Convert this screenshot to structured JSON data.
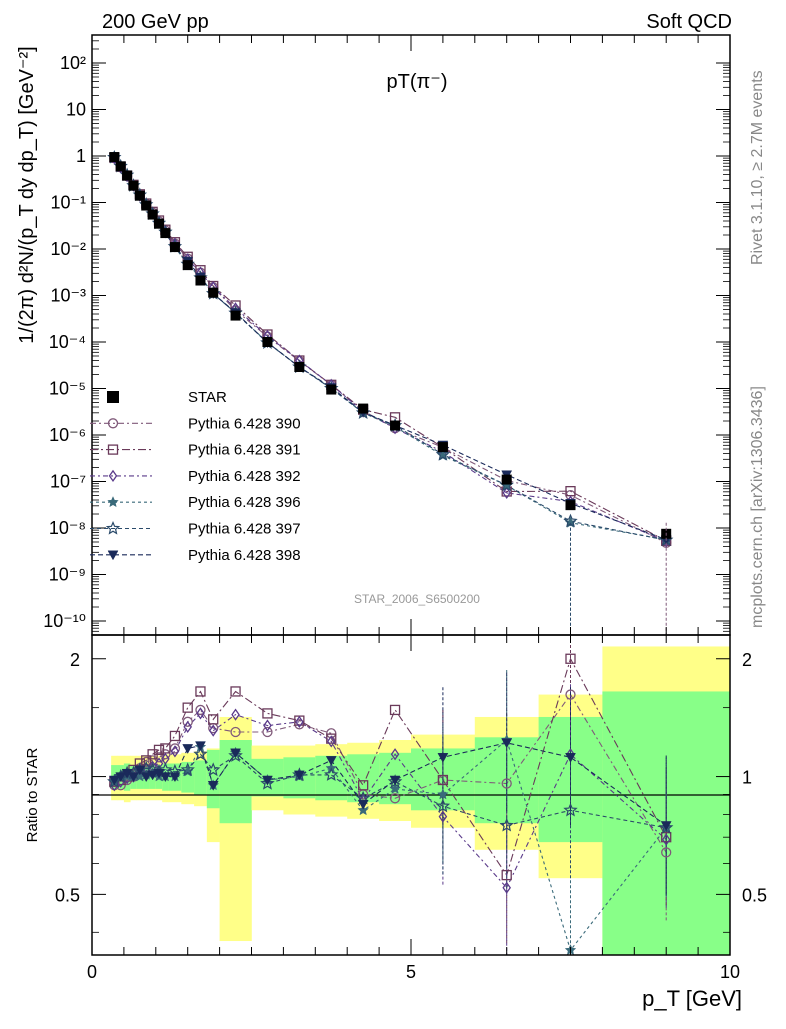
{
  "header": {
    "left": "200 GeV pp",
    "right": "Soft QCD"
  },
  "side_labels": {
    "rivet": "Rivet 3.1.10, ≥ 2.7M events",
    "mcplots": "mcplots.cern.ch [arXiv:1306.3436]"
  },
  "plot_title": "pT(π⁻)",
  "watermark": "STAR_2006_S6500200",
  "axes": {
    "ylabel_main": "1/(2π) d²N/(p_T dy dp_T) [GeV⁻²]",
    "ylabel_ratio": "Ratio to STAR",
    "xlabel": "p_T [GeV]",
    "x_ticks": [
      "0",
      "5",
      "10"
    ],
    "main_ticks": [
      "10²",
      "10",
      "1",
      "10⁻¹",
      "10⁻²",
      "10⁻³",
      "10⁻⁴",
      "10⁻⁵",
      "10⁻⁶",
      "10⁻⁷",
      "10⁻⁸",
      "10⁻⁹",
      "10⁻¹⁰"
    ],
    "ratio_ticks": [
      "2",
      "1",
      "0.5"
    ]
  },
  "colors": {
    "band_yellow": "#ffff88",
    "band_green": "#88ff88",
    "p390": "#805a7a",
    "p391": "#6a3a5a",
    "p392": "#5a3a8a",
    "p396": "#3a6a7a",
    "p397": "#2a4a6a",
    "p398": "#1a2a5a"
  },
  "chart_data": {
    "type": "scatter",
    "xlabel": "p_T [GeV]",
    "ylabel": "1/(2π) d²N/(p_T dy dp_T) [GeV⁻²]",
    "xlim": [
      0,
      10
    ],
    "ylim": [
      5e-11,
      400
    ],
    "yscale": "log",
    "ratio_ylim": [
      0.35,
      2.3
    ],
    "ratio_yscale": "log",
    "legend_position": "lower-left",
    "x": [
      0.35,
      0.45,
      0.55,
      0.65,
      0.75,
      0.85,
      0.95,
      1.05,
      1.15,
      1.3,
      1.5,
      1.7,
      1.9,
      2.25,
      2.75,
      3.25,
      3.75,
      4.25,
      4.75,
      5.5,
      6.5,
      7.5,
      9.0
    ],
    "reference": {
      "name": "STAR",
      "values": [
        0.95,
        0.6,
        0.38,
        0.23,
        0.14,
        0.086,
        0.055,
        0.035,
        0.022,
        0.011,
        0.0045,
        0.0021,
        0.00115,
        0.00037,
        0.0001,
        2.9e-05,
        9.5e-06,
        3.7e-06,
        1.6e-06,
        5.5e-07,
        1.1e-07,
        3.1e-08,
        7.5e-09
      ]
    },
    "band_ratio_edges": [
      0.3,
      0.4,
      0.5,
      0.6,
      0.7,
      0.8,
      0.9,
      1.0,
      1.1,
      1.2,
      1.4,
      1.6,
      1.8,
      2.0,
      2.5,
      3.0,
      3.5,
      4.0,
      4.5,
      5.0,
      6.0,
      7.0,
      8.0,
      10.0
    ],
    "band_yellow_lo": [
      0.87,
      0.87,
      0.86,
      0.87,
      0.87,
      0.87,
      0.87,
      0.87,
      0.86,
      0.86,
      0.85,
      0.84,
      0.68,
      0.38,
      0.82,
      0.8,
      0.79,
      0.78,
      0.77,
      0.74,
      0.65,
      0.55,
      0.35
    ],
    "band_yellow_hi": [
      1.13,
      1.13,
      1.13,
      1.13,
      1.13,
      1.13,
      1.13,
      1.13,
      1.14,
      1.14,
      1.15,
      1.16,
      1.18,
      1.42,
      1.2,
      1.2,
      1.21,
      1.22,
      1.24,
      1.28,
      1.42,
      1.62,
      2.15
    ],
    "band_green_lo": [
      0.93,
      0.93,
      0.92,
      0.93,
      0.93,
      0.93,
      0.93,
      0.93,
      0.92,
      0.92,
      0.91,
      0.9,
      0.83,
      0.76,
      0.89,
      0.88,
      0.87,
      0.86,
      0.85,
      0.82,
      0.76,
      0.68,
      0.35
    ],
    "band_green_hi": [
      1.07,
      1.07,
      1.08,
      1.07,
      1.07,
      1.07,
      1.07,
      1.07,
      1.08,
      1.08,
      1.09,
      1.1,
      1.17,
      1.24,
      1.11,
      1.12,
      1.13,
      1.14,
      1.15,
      1.18,
      1.26,
      1.42,
      1.65
    ],
    "series": [
      {
        "name": "Pythia 6.428 390",
        "values": [
          0.9,
          0.57,
          0.37,
          0.23,
          0.15,
          0.094,
          0.061,
          0.039,
          0.025,
          0.013,
          0.0062,
          0.0031,
          0.0015,
          0.00048,
          0.00013,
          3.9e-05,
          1.2e-05,
          3.3e-06,
          1.4e-06,
          5.4e-07,
          1.05e-07,
          5.1e-08,
          4.8e-09
        ],
        "ratio": [
          0.95,
          0.95,
          0.98,
          1.0,
          1.05,
          1.09,
          1.1,
          1.12,
          1.14,
          1.18,
          1.38,
          1.48,
          1.33,
          1.3,
          1.3,
          1.36,
          1.29,
          0.9,
          0.88,
          0.98,
          0.96,
          1.62,
          0.64
        ]
      },
      {
        "name": "Pythia 6.428 391",
        "values": [
          0.92,
          0.59,
          0.38,
          0.24,
          0.15,
          0.095,
          0.063,
          0.041,
          0.026,
          0.014,
          0.0068,
          0.0035,
          0.0016,
          0.00061,
          0.000145,
          4e-05,
          1.2e-05,
          3.5e-06,
          2.4e-06,
          5.4e-07,
          6.1e-08,
          6.2e-08,
          5.3e-09
        ],
        "ratio": [
          0.97,
          0.98,
          1.0,
          1.04,
          1.08,
          1.1,
          1.14,
          1.17,
          1.18,
          1.27,
          1.5,
          1.65,
          1.4,
          1.65,
          1.45,
          1.39,
          1.25,
          0.95,
          1.48,
          0.98,
          0.56,
          2.0,
          0.7
        ]
      },
      {
        "name": "Pythia 6.428 392",
        "values": [
          0.9,
          0.57,
          0.37,
          0.23,
          0.14,
          0.09,
          0.058,
          0.037,
          0.024,
          0.013,
          0.006,
          0.0031,
          0.0015,
          0.00053,
          0.000135,
          4e-05,
          1.2e-05,
          3.2e-06,
          1.4e-06,
          4.3e-07,
          5.7e-08,
          3.7e-08,
          5.2e-09
        ],
        "ratio": [
          0.95,
          0.97,
          0.99,
          1.0,
          1.03,
          1.05,
          1.06,
          1.08,
          1.11,
          1.16,
          1.34,
          1.45,
          1.31,
          1.44,
          1.35,
          1.38,
          1.23,
          0.87,
          1.14,
          0.79,
          0.52,
          1.14,
          0.69
        ]
      },
      {
        "name": "Pythia 6.428 396",
        "values": [
          0.92,
          0.6,
          0.38,
          0.23,
          0.14,
          0.087,
          0.056,
          0.035,
          0.022,
          0.011,
          0.0046,
          0.0025,
          0.0011,
          0.00042,
          9.8e-05,
          2.9e-05,
          1e-05,
          3e-06,
          1.5e-06,
          3.6e-07,
          8.2e-08,
          1.3e-08,
          5.6e-09
        ],
        "ratio": [
          0.97,
          1.0,
          1.0,
          1.0,
          1.0,
          1.01,
          1.02,
          1.0,
          1.0,
          1.0,
          1.03,
          1.19,
          0.95,
          1.15,
          0.98,
          1.0,
          1.05,
          0.82,
          0.93,
          0.9,
          1.24,
          0.36,
          0.74
        ]
      },
      {
        "name": "Pythia 6.428 397",
        "values": [
          0.93,
          0.6,
          0.39,
          0.23,
          0.145,
          0.09,
          0.057,
          0.036,
          0.023,
          0.0113,
          0.0047,
          0.0024,
          0.0011,
          0.00042,
          9.6e-05,
          2.9e-05,
          1e-05,
          3e-06,
          1.6e-06,
          3.8e-07,
          8.3e-08,
          1.4e-08,
          5.5e-09
        ],
        "ratio": [
          0.97,
          1.0,
          1.02,
          1.02,
          1.04,
          1.05,
          1.04,
          1.03,
          1.04,
          1.03,
          1.04,
          1.14,
          1.04,
          1.13,
          0.96,
          1.01,
          1.01,
          0.88,
          0.97,
          0.84,
          0.75,
          0.82,
          0.74
        ]
      },
      {
        "name": "Pythia 6.428 398",
        "values": [
          0.93,
          0.59,
          0.39,
          0.23,
          0.14,
          0.086,
          0.056,
          0.036,
          0.022,
          0.011,
          0.0055,
          0.0025,
          0.0011,
          0.00043,
          9.7e-05,
          2.9e-05,
          1.05e-05,
          3.1e-06,
          1.6e-06,
          6.1e-07,
          1.4e-07,
          3.4e-08,
          5.6e-09
        ],
        "ratio": [
          0.98,
          1.0,
          1.02,
          1.0,
          1.04,
          1.0,
          1.01,
          1.02,
          1.0,
          1.0,
          1.18,
          1.2,
          0.95,
          1.15,
          0.98,
          1.01,
          1.1,
          0.85,
          0.98,
          1.12,
          1.22,
          1.12,
          0.75
        ]
      }
    ]
  }
}
